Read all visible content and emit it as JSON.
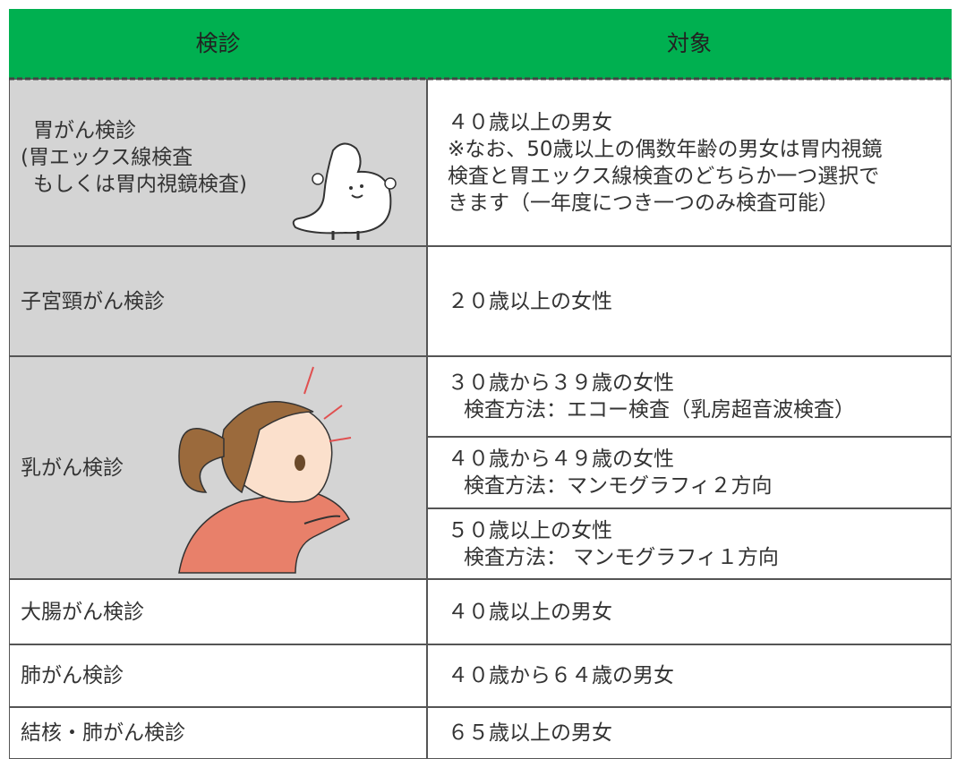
{
  "header": {
    "columns": [
      "検診",
      "対象"
    ]
  },
  "rows": [
    {
      "exam": [
        "胃がん検診",
        "(胃エックス線検査",
        "もしくは胃内視鏡検査)"
      ],
      "targets": [
        [
          "４０歳以上の男女",
          "※なお、50歳以上の偶数年齢の男女は胃内視鏡",
          "検査と胃エックス線検査のどちらか一つ選択で",
          "きます（一年度につき一つのみ検査可能）"
        ]
      ]
    },
    {
      "exam": [
        "子宮頸がん検診"
      ],
      "targets": [
        [
          "２０歳以上の女性"
        ]
      ]
    },
    {
      "exam": [
        "乳がん検診"
      ],
      "targets": [
        [
          "３０歳から３９歳の女性",
          "検査方法：エコー検査（乳房超音波検査）"
        ],
        [
          "４０歳から４９歳の女性",
          "検査方法：マンモグラフィ２方向"
        ],
        [
          "５０歳以上の女性",
          "検査方法： マンモグラフィ１方向"
        ]
      ]
    },
    {
      "exam": [
        "大腸がん検診"
      ],
      "targets": [
        [
          "４０歳以上の男女"
        ]
      ]
    },
    {
      "exam": [
        "肺がん検診"
      ],
      "targets": [
        [
          "４０歳から６４歳の男女"
        ]
      ]
    },
    {
      "exam": [
        "結核・肺がん検診"
      ],
      "targets": [
        [
          "６５歳以上の男女"
        ]
      ]
    }
  ]
}
